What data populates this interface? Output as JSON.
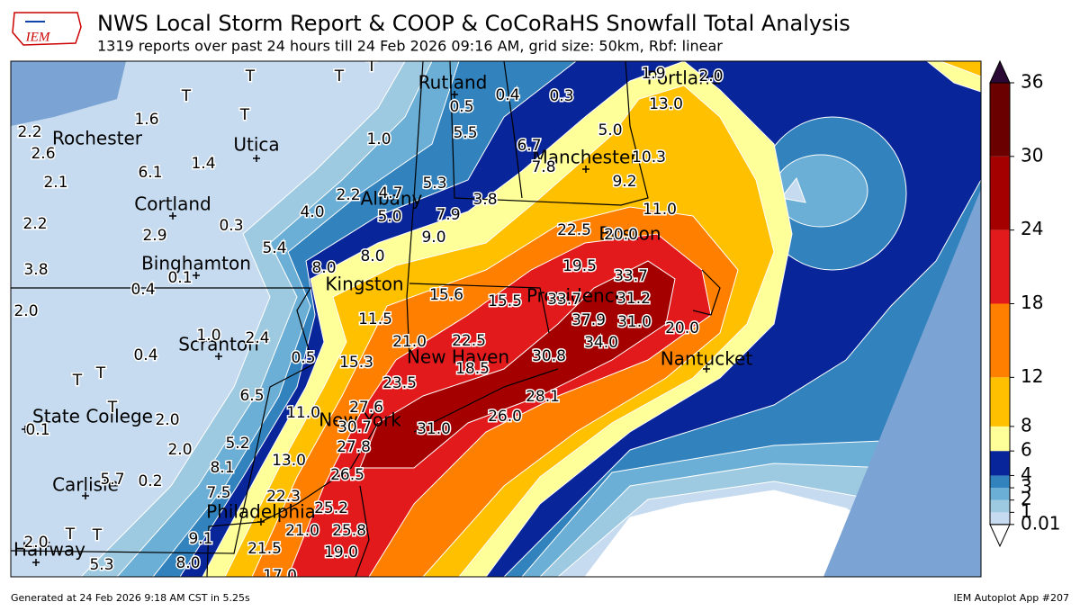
{
  "header": {
    "logo": "IEM",
    "title": "NWS Local Storm Report & COOP & CoCoRaHS Snowfall Total Analysis",
    "subtitle": "1319 reports over past 24 hours till 24 Feb 2026 09:16 AM, grid size: 50km, Rbf: linear"
  },
  "map": {
    "cities": [
      "Rutland",
      "Utica",
      "Rochester",
      "Cortland",
      "Manchester",
      "Albany",
      "Binghamton",
      "Kingston",
      "Providence",
      "Boston",
      "Portland",
      "Scranton",
      "New Haven",
      "Nantucket",
      "State College",
      "New York",
      "Carlisle",
      "Philadelphia",
      "Halfway"
    ],
    "reports": [
      "1.9",
      "2.0",
      "13.0",
      "0.5",
      "0.4",
      "0.3",
      "5.5",
      "5.0",
      "6.7",
      "7.8",
      "10.3",
      "9.2",
      "1.6",
      "2.2",
      "2.6",
      "2.1",
      "6.1",
      "1.4",
      "1.0",
      "2.2",
      "4.7",
      "5.3",
      "3.8",
      "4.0",
      "5.0",
      "7.9",
      "9.0",
      "11.0",
      "22.5",
      "20.0",
      "2.2",
      "2.9",
      "0.3",
      "5.4",
      "8.0",
      "8.0",
      "19.5",
      "33.7",
      "3.8",
      "0.4",
      "0.1",
      "15.6",
      "15.5",
      "33.7",
      "31.2",
      "2.0",
      "11.5",
      "37.9",
      "31.0",
      "20.0",
      "1.0",
      "2.4",
      "21.0",
      "22.5",
      "34.0",
      "0.4",
      "0.5",
      "15.3",
      "18.5",
      "30.8",
      "23.5",
      "28.1",
      "6.5",
      "27.6",
      "11.0",
      "2.0",
      "0.1",
      "26.0",
      "30.7",
      "31.0",
      "27.8",
      "2.0",
      "5.2",
      "13.0",
      "8.1",
      "26.5",
      "5.7",
      "0.2",
      "7.5",
      "22.3",
      "25.2",
      "25.8",
      "21.0",
      "9.1",
      "2.0",
      "21.5",
      "19.0",
      "5.3",
      "8.0",
      "17.0",
      "T",
      "T",
      "T",
      "T",
      "T",
      "T",
      "T",
      "T",
      "T",
      "T"
    ]
  },
  "colorbar": {
    "levels": [
      0.01,
      1,
      2,
      3,
      4,
      6,
      8,
      12,
      18,
      24,
      30,
      36
    ],
    "colors": [
      "#c6dbef",
      "#9ecae1",
      "#6baed6",
      "#3182bd",
      "#08259a",
      "#ffff99",
      "#ffc000",
      "#ff8000",
      "#e31a1c",
      "#a50000",
      "#6b0000"
    ],
    "over_color": "#2a0a35",
    "under_color": "#ffffff",
    "range": [
      0,
      36
    ]
  },
  "footer": {
    "left": "Generated at 24 Feb 2026 9:18 AM CST in 5.25s",
    "right": "IEM Autoplot App #207"
  }
}
